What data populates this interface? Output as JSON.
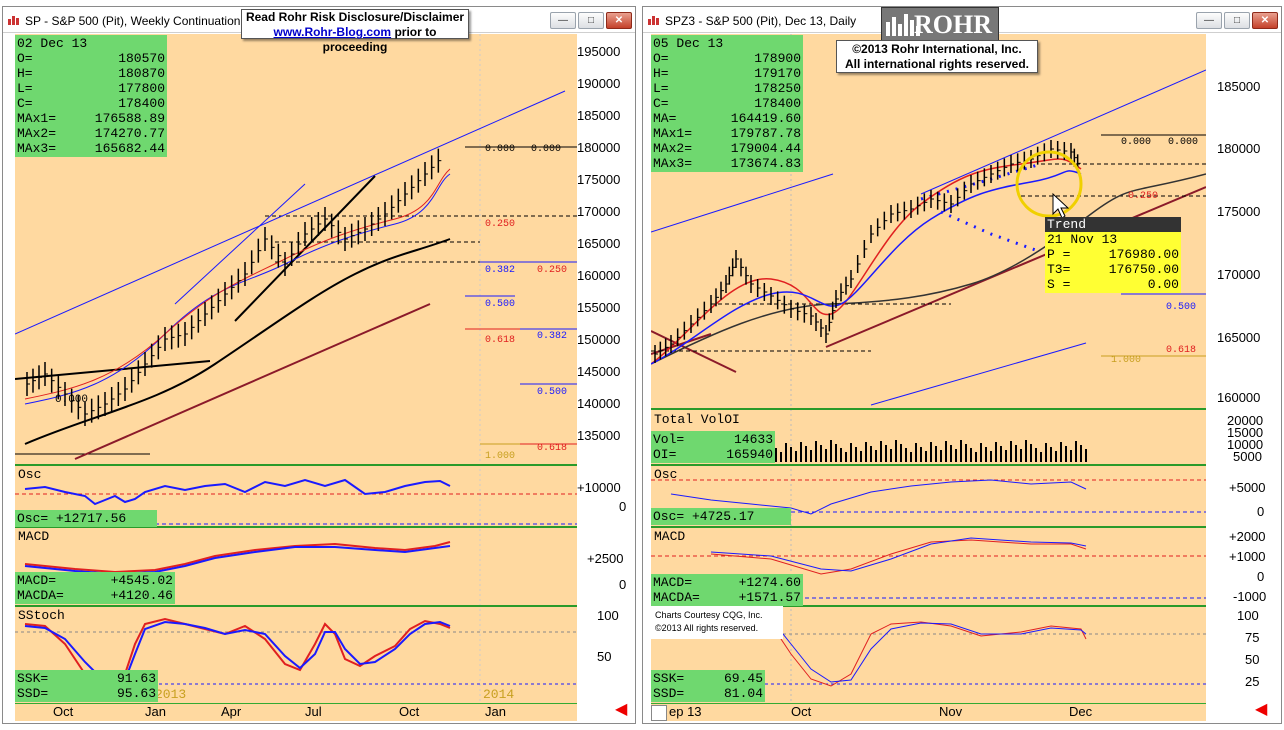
{
  "disclaimer": {
    "line1": "Read Rohr Risk Disclosure/Disclaimer",
    "link": "www.Rohr-Blog.com",
    "line2": "prior to proceeding"
  },
  "logo_text": "ROHR",
  "copyright": {
    "line1": "©2013  Rohr International, Inc.",
    "line2": "All international rights reserved."
  },
  "courtesy": {
    "line1": "Charts Courtesy CQG, Inc.",
    "line2": "©2013 All rights reserved."
  },
  "left": {
    "title": "SP - S&P 500 (Pit), Weekly Continuation",
    "ohlc": [
      [
        "02 Dec 13",
        ""
      ],
      [
        "O=",
        "180570"
      ],
      [
        "H=",
        "180870"
      ],
      [
        "L=",
        "177800"
      ],
      [
        "C=",
        "178400"
      ],
      [
        "MAx1=",
        "176588.89"
      ],
      [
        "MAx2=",
        "174270.77"
      ],
      [
        "MAx3=",
        "165682.44"
      ]
    ],
    "price_ticks": [
      "195000",
      "190000",
      "185000",
      "180000",
      "175000",
      "170000",
      "165000",
      "160000",
      "155000",
      "150000",
      "145000",
      "140000",
      "135000"
    ],
    "fib": [
      "0.000",
      "0.000",
      "0.250",
      "0.250",
      "0.382",
      "0.382",
      "0.500",
      "0.500",
      "0.618",
      "0.618",
      "1.000"
    ],
    "osc": {
      "label": "Osc",
      "value": "Osc=  +12717.56",
      "ticks": [
        "+10000",
        "0"
      ]
    },
    "macd": {
      "label": "MACD",
      "macd": "MACD=",
      "macd_v": "+4545.02",
      "macda": "MACDA=",
      "macda_v": "+4120.46",
      "ticks": [
        "+2500",
        "0"
      ]
    },
    "sstoch": {
      "label": "SStoch",
      "ssk": "SSK=",
      "ssk_v": "91.63",
      "ssd": "SSD=",
      "ssd_v": "95.63",
      "ticks": [
        "100",
        "50"
      ]
    },
    "xaxis": [
      "Oct",
      "Jan",
      "Apr",
      "Jul",
      "Oct",
      "Jan"
    ],
    "year_labels": [
      "2013",
      "2014"
    ],
    "vertical_label": "0.000"
  },
  "right": {
    "title": "SPZ3 - S&P 500 (Pit), Dec 13, Daily",
    "ohlc": [
      [
        "05 Dec 13",
        ""
      ],
      [
        "O=",
        "178900"
      ],
      [
        "H=",
        "179170"
      ],
      [
        "L=",
        "178250"
      ],
      [
        "C=",
        "178400"
      ],
      [
        "MA=",
        "164419.60"
      ],
      [
        "MAx1=",
        "179787.78"
      ],
      [
        "MAx2=",
        "179004.44"
      ],
      [
        "MAx3=",
        "173674.83"
      ]
    ],
    "price_ticks": [
      "185000",
      "180000",
      "175000",
      "170000",
      "165000",
      "160000"
    ],
    "fib": [
      "0.000",
      "0.000",
      "0.250",
      "0.500",
      "0.618",
      "1.000"
    ],
    "trend": {
      "label": "Trend",
      "date": "21 Nov 13",
      "p": "P  =",
      "p_v": "176980.00",
      "t3": "T3=",
      "t3_v": "176750.00",
      "s": "S  =",
      "s_v": "0.00"
    },
    "volume": {
      "label": "Total VolOI",
      "vol": "Vol=",
      "vol_v": "14633",
      "oi": "OI=",
      "oi_v": "165940",
      "ticks": [
        "20000",
        "15000",
        "10000",
        "5000"
      ]
    },
    "osc": {
      "label": "Osc",
      "value": "Osc=  +4725.17",
      "ticks": [
        "+5000",
        "0"
      ]
    },
    "macd": {
      "label": "MACD",
      "macd": "MACD=",
      "macd_v": "+1274.60",
      "macda": "MACDA=",
      "macda_v": "+1571.57",
      "ticks": [
        "+2000",
        "+1000",
        "0",
        "-1000"
      ]
    },
    "sstoch": {
      "ssk": "SSK=",
      "ssk_v": "69.45",
      "ssd": "SSD=",
      "ssd_v": "81.04",
      "ticks": [
        "100",
        "75",
        "50",
        "25"
      ]
    },
    "xaxis": [
      "ep 13",
      "Oct",
      "Nov",
      "Dec"
    ]
  },
  "colors": {
    "chart_bg": "#ffd9a0",
    "box_green": "#6fd86f",
    "trend_yellow": "#ffff33",
    "ma_blue": "#1a1aff",
    "ma_red": "#e02020",
    "trend_maroon": "#8b1a2a"
  }
}
